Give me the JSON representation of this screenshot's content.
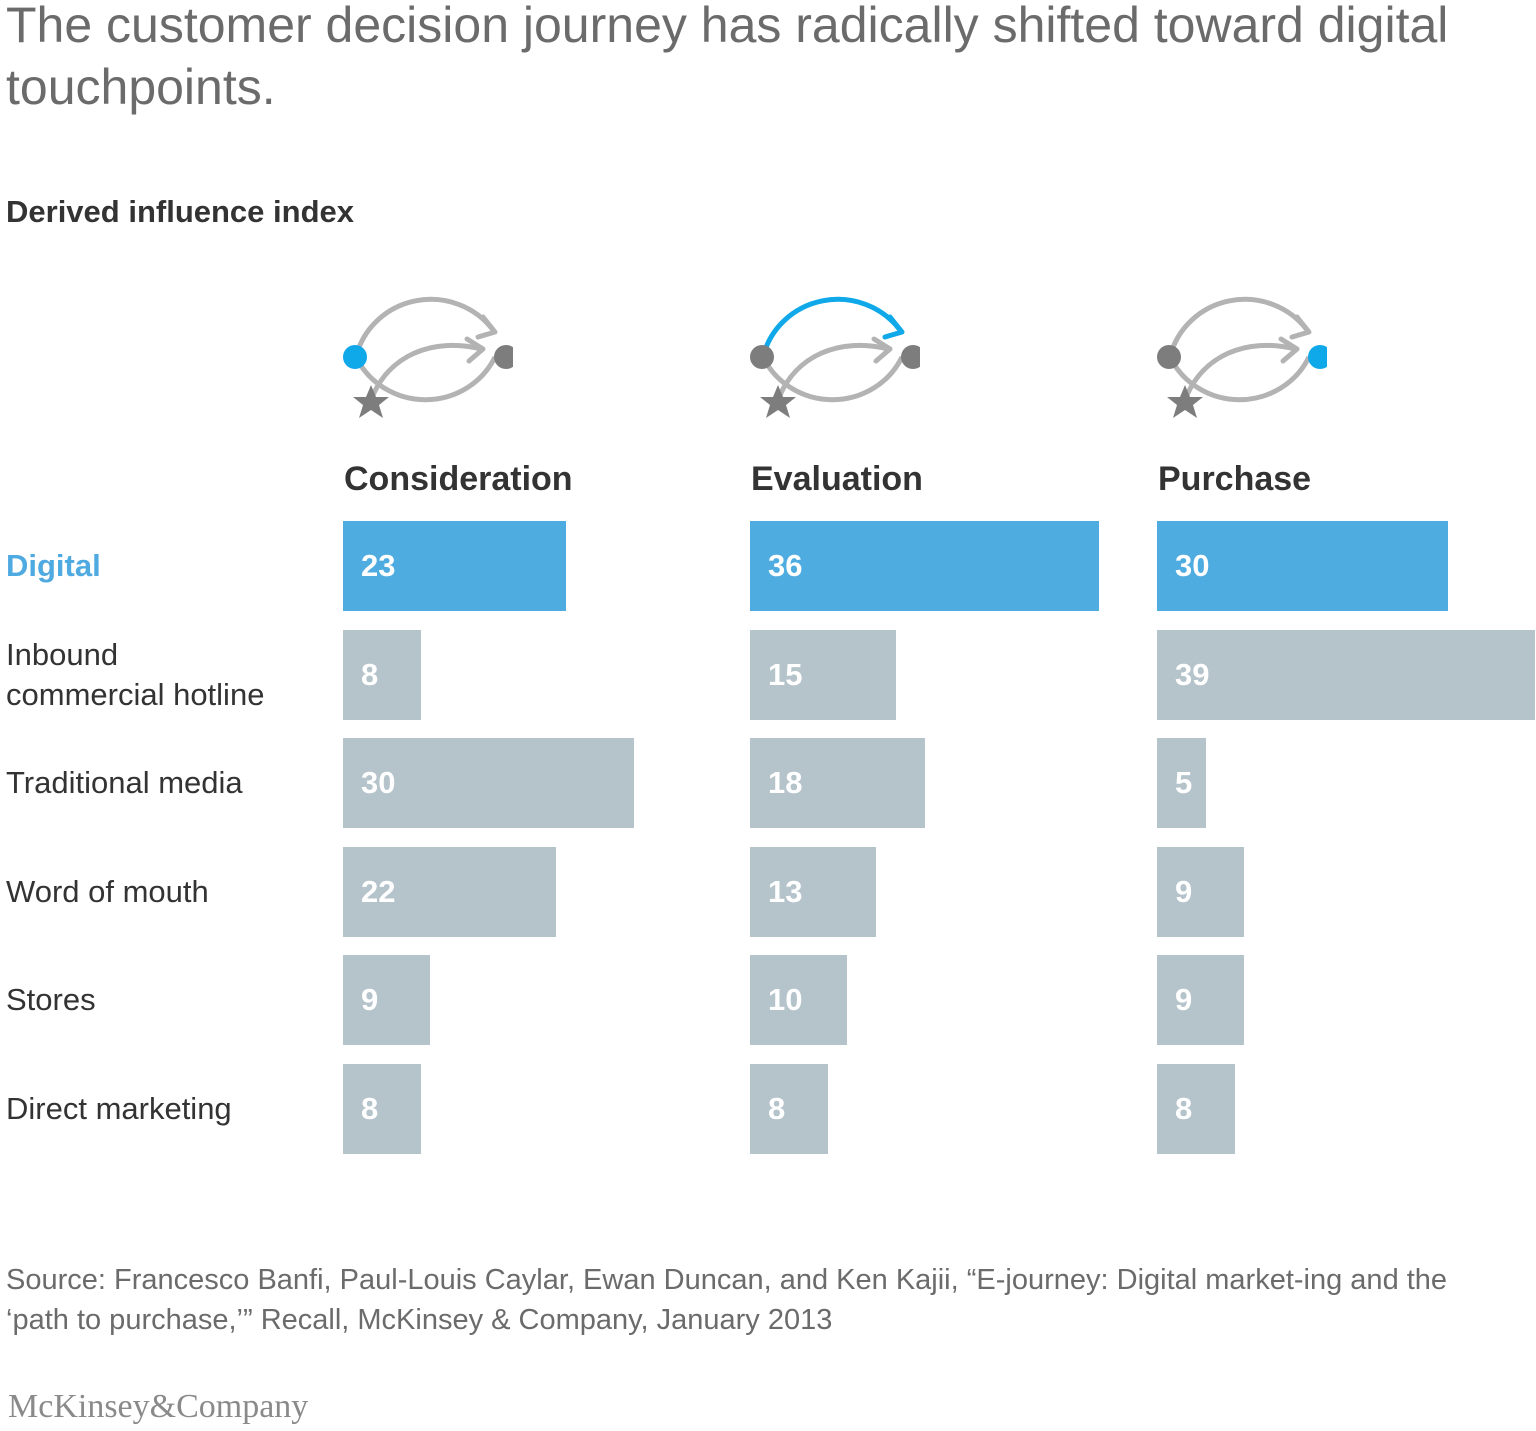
{
  "title": "The customer decision journey has radically shifted toward digital touchpoints.",
  "subtitle": "Derived influence index",
  "colors": {
    "highlight": "#4eace0",
    "highlight_label": "#4eaae0",
    "bar": "#b5c3cb",
    "icon_gray": "#b3b3b3",
    "icon_dark": "#7d7d7d",
    "icon_blue": "#0fa8e8"
  },
  "chart_data": {
    "type": "bar",
    "orientation": "horizontal",
    "title": "Derived influence index",
    "categories": [
      "Digital",
      "Inbound\ncommercial hotline",
      "Traditional media",
      "Word of mouth",
      "Stores",
      "Direct marketing"
    ],
    "highlight_category": "Digital",
    "series": [
      {
        "name": "Consideration",
        "values": [
          23,
          8,
          30,
          22,
          9,
          8
        ],
        "active_node": "start",
        "icon": "journey-consideration-icon"
      },
      {
        "name": "Evaluation",
        "values": [
          36,
          15,
          18,
          13,
          10,
          8
        ],
        "active_node": "arc",
        "icon": "journey-evaluation-icon"
      },
      {
        "name": "Purchase",
        "values": [
          30,
          39,
          5,
          9,
          9,
          8
        ],
        "active_node": "end",
        "icon": "journey-purchase-icon"
      }
    ],
    "xlim": [
      0,
      39
    ],
    "grid": false,
    "legend": "none"
  },
  "source": "Source: Francesco Banfi, Paul-Louis Caylar, Ewan Duncan, and Ken Kajii, “E-journey: Digital market-ing and the ‘path to purchase,’” Recall, McKinsey & Company, January 2013",
  "logo": "McKinsey&Company"
}
